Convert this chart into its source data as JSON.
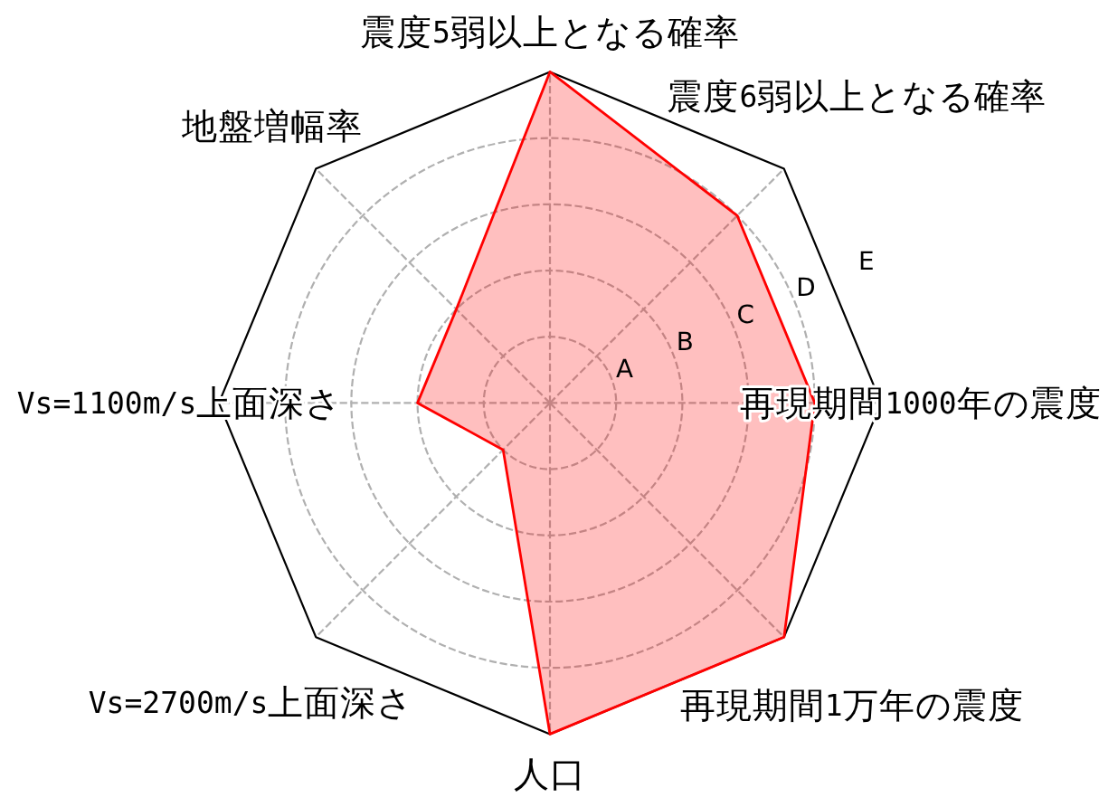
{
  "chart_data": {
    "type": "radar",
    "categories": [
      "震度5弱以上となる確率",
      "震度6弱以上となる確率",
      "再現期間1000年の震度",
      "再現期間1万年の震度",
      "人口",
      "Vs=2700m/s上面深さ",
      "Vs=1100m/s上面深さ",
      "地盤増幅率"
    ],
    "series": [
      {
        "color": "#ff0000",
        "values": [
          5,
          4,
          4,
          5,
          5,
          1,
          2,
          2
        ]
      }
    ],
    "ylim": [
      0,
      5
    ],
    "yticks": [
      {
        "value": 1,
        "label": "A"
      },
      {
        "value": 2,
        "label": "B"
      },
      {
        "value": 3,
        "label": "C"
      },
      {
        "value": 4,
        "label": "D"
      },
      {
        "value": 5,
        "label": "E"
      }
    ],
    "grid": true
  }
}
